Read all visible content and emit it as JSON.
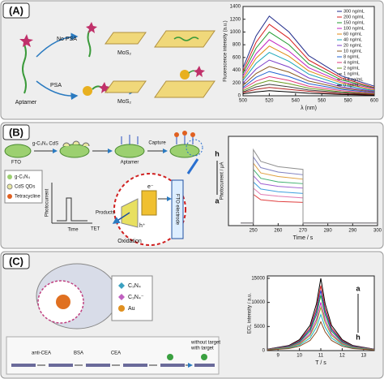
{
  "labels": [
    "(A)",
    "(B)",
    "(C)"
  ],
  "diagram": {
    "a": {
      "no_psa": "No PSA",
      "psa": "PSA",
      "mos2_top": "MoS₂",
      "mos2_bottom": "MoS₂",
      "aptamer": "Aptamer"
    },
    "b": {
      "fto": "FTO",
      "modify": "g-C₃N₄ CdS",
      "aptamer": "Aptamer",
      "capture": "Capture",
      "key_c3n4": "g-C₃N₄",
      "key_cds": "CdS QDs",
      "key_tet": "Tetracycline",
      "photocurrent": "Photocurrent",
      "time": "Time",
      "products": "Products",
      "tet": "TET",
      "oxidation": "Oxidation",
      "electrode": "FTO electrode",
      "electron": "e⁻",
      "hole": "h⁺"
    },
    "c": {
      "key_c3n4": "C₃N₄",
      "key_c3n4_ion": "C₃N₄⁻",
      "key_au": "Au",
      "anti_cea": "anti-CEA",
      "bsa": "BSA",
      "cea": "CEA",
      "without": "without target",
      "with": "with target"
    }
  },
  "chart_data": [
    {
      "type": "line",
      "xlabel": "λ (nm)",
      "ylabel": "Fluorescence intensity (a.u.)",
      "x": [
        500,
        510,
        520,
        535,
        550,
        575,
        600
      ],
      "xlim": [
        500,
        600
      ],
      "xticks": [
        500,
        520,
        540,
        560,
        580,
        600
      ],
      "ylim": [
        0,
        1400
      ],
      "yticks": [
        0,
        200,
        400,
        600,
        800,
        1000,
        1200,
        1400
      ],
      "legend": "upper right",
      "series": [
        {
          "name": "300 ng/mL",
          "color": "#1f2a8a",
          "values": [
            440,
            940,
            1250,
            1000,
            630,
            310,
            150
          ]
        },
        {
          "name": "200 ng/mL",
          "color": "#d62020",
          "values": [
            390,
            840,
            1120,
            900,
            560,
            280,
            130
          ]
        },
        {
          "name": "150 ng/mL",
          "color": "#1f9a2e",
          "values": [
            350,
            750,
            1000,
            800,
            500,
            250,
            120
          ]
        },
        {
          "name": "100 ng/mL",
          "color": "#c020c0",
          "values": [
            310,
            660,
            880,
            700,
            440,
            220,
            110
          ]
        },
        {
          "name": "60 ng/mL",
          "color": "#e08a10",
          "values": [
            270,
            590,
            780,
            620,
            390,
            200,
            90
          ]
        },
        {
          "name": "40 ng/mL",
          "color": "#1aa6b8",
          "values": [
            240,
            510,
            680,
            540,
            340,
            170,
            80
          ]
        },
        {
          "name": "20 ng/mL",
          "color": "#7a3cc8",
          "values": [
            200,
            420,
            560,
            450,
            280,
            140,
            70
          ]
        },
        {
          "name": "10 ng/mL",
          "color": "#8a5a20",
          "values": [
            160,
            350,
            460,
            370,
            230,
            120,
            60
          ]
        },
        {
          "name": "8 ng/mL",
          "color": "#2060d0",
          "values": [
            130,
            290,
            380,
            300,
            190,
            100,
            50
          ]
        },
        {
          "name": "4 ng/mL",
          "color": "#e03a7a",
          "values": [
            110,
            230,
            300,
            240,
            150,
            80,
            40
          ]
        },
        {
          "name": "2 ng/mL",
          "color": "#6a9a20",
          "values": [
            80,
            180,
            240,
            190,
            120,
            60,
            30
          ]
        },
        {
          "name": "1 ng/mL",
          "color": "#404040",
          "values": [
            60,
            140,
            180,
            140,
            90,
            50,
            20
          ]
        },
        {
          "name": "0.5 ng/mL",
          "color": "#b02020",
          "values": [
            50,
            100,
            130,
            100,
            70,
            30,
            20
          ]
        },
        {
          "name": "0 ng/mL",
          "color": "#000000",
          "values": [
            30,
            60,
            80,
            60,
            40,
            20,
            10
          ]
        }
      ]
    },
    {
      "type": "line",
      "xlabel": "Time / s",
      "ylabel": "Photocurrent / μA",
      "x": [
        245,
        250,
        250,
        253,
        260,
        270,
        270,
        300
      ],
      "xlim": [
        240,
        300
      ],
      "xticks": [
        250,
        260,
        270,
        280,
        290,
        300
      ],
      "ylim": [
        0,
        10
      ],
      "annotations": [
        "h",
        "a"
      ],
      "series": [
        {
          "color": "#e04040",
          "values": [
            0.3,
            0.3,
            3.5,
            2.9,
            2.7,
            2.6,
            0.3,
            0.3
          ]
        },
        {
          "color": "#e07ab0",
          "values": [
            0.3,
            0.3,
            4.2,
            3.5,
            3.3,
            3.1,
            0.3,
            0.3
          ]
        },
        {
          "color": "#40a0e0",
          "values": [
            0.3,
            0.3,
            4.9,
            4.1,
            3.8,
            3.6,
            0.3,
            0.3
          ]
        },
        {
          "color": "#a060d0",
          "values": [
            0.3,
            0.3,
            5.6,
            4.7,
            4.4,
            4.2,
            0.3,
            0.3
          ]
        },
        {
          "color": "#40b070",
          "values": [
            0.3,
            0.3,
            6.3,
            5.3,
            4.9,
            4.7,
            0.3,
            0.3
          ]
        },
        {
          "color": "#e0a040",
          "values": [
            0.3,
            0.3,
            7.0,
            5.9,
            5.5,
            5.2,
            0.3,
            0.3
          ]
        },
        {
          "color": "#8080c0",
          "values": [
            0.3,
            0.3,
            7.7,
            6.5,
            6.0,
            5.7,
            0.3,
            0.3
          ]
        },
        {
          "color": "#909090",
          "values": [
            0.3,
            0.3,
            8.5,
            7.2,
            6.6,
            6.3,
            0.3,
            0.3
          ]
        }
      ]
    },
    {
      "type": "line",
      "xlabel": "T / s",
      "ylabel": "ECL intensity / a.u.",
      "x": [
        8.5,
        9.5,
        10,
        10.5,
        10.8,
        11,
        11.2,
        11.5,
        12,
        12.5,
        13.5
      ],
      "xlim": [
        8.5,
        13.5
      ],
      "xticks": [
        9,
        10,
        11,
        12,
        13
      ],
      "ylim": [
        0,
        15500
      ],
      "yticks": [
        0,
        5000,
        10000,
        15000
      ],
      "annotations": [
        "a",
        "h"
      ],
      "series": [
        {
          "color": "#000000",
          "values": [
            300,
            1050,
            2250,
            5250,
            9750,
            15000,
            9750,
            5250,
            2250,
            1050,
            300
          ]
        },
        {
          "color": "#d62020",
          "values": [
            270,
            950,
            2030,
            4730,
            8780,
            13500,
            8780,
            4730,
            2030,
            950,
            270
          ]
        },
        {
          "color": "#2040d0",
          "values": [
            250,
            880,
            1880,
            4380,
            8130,
            12500,
            8130,
            4380,
            1880,
            880,
            250
          ]
        },
        {
          "color": "#20a030",
          "values": [
            230,
            810,
            1730,
            4030,
            7480,
            11500,
            7480,
            4030,
            1730,
            810,
            230
          ]
        },
        {
          "color": "#c020c0",
          "values": [
            200,
            700,
            1500,
            3500,
            6500,
            10000,
            6500,
            3500,
            1500,
            700,
            200
          ]
        },
        {
          "color": "#a0a020",
          "values": [
            180,
            630,
            1350,
            3150,
            5850,
            9000,
            5850,
            3150,
            1350,
            630,
            180
          ]
        },
        {
          "color": "#20b0c0",
          "values": [
            150,
            530,
            1130,
            2630,
            4880,
            7500,
            4880,
            2630,
            1130,
            530,
            150
          ]
        },
        {
          "color": "#8a4a20",
          "values": [
            120,
            420,
            900,
            2100,
            3900,
            6000,
            3900,
            2100,
            900,
            420,
            120
          ]
        }
      ]
    }
  ]
}
